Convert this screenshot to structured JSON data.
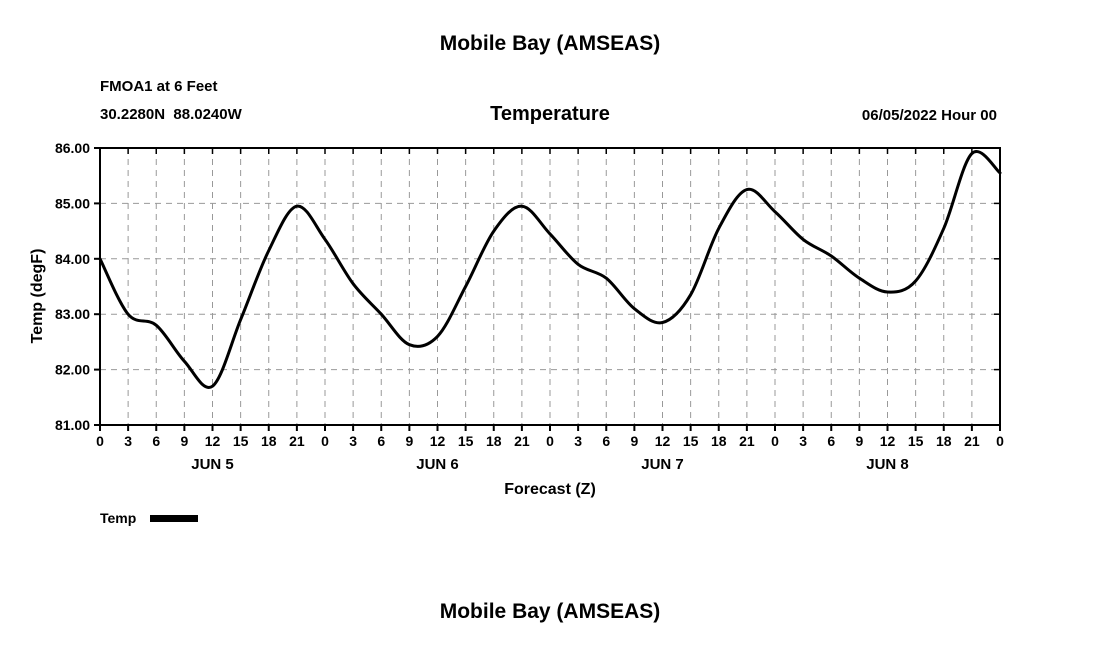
{
  "header": {
    "main_title": "Mobile Bay (AMSEAS)",
    "station": "FMOA1 at 6 Feet",
    "coordinates": "30.2280N  88.0240W",
    "plot_title": "Temperature",
    "datetime": "06/05/2022 Hour 00"
  },
  "legend": {
    "label": "Temp"
  },
  "footer": {
    "bottom_title": "Mobile Bay (AMSEAS)"
  },
  "colors": {
    "line": "#000000",
    "grid": "#999999",
    "axis": "#000000",
    "text": "#000000",
    "background": "#ffffff"
  },
  "chart_data": {
    "type": "line",
    "title": "Temperature",
    "xlabel": "Forecast (Z)",
    "ylabel": "Temp (degF)",
    "ylim": [
      81,
      86
    ],
    "xlim": [
      0,
      96
    ],
    "grid": true,
    "legend_position": "bottom-left",
    "y_tick_values": [
      81,
      82,
      83,
      84,
      85,
      86
    ],
    "y_tick_labels": [
      "81.00",
      "82.00",
      "83.00",
      "84.00",
      "85.00",
      "86.00"
    ],
    "x_tick_step_hours": 3,
    "x_tick_labels": [
      "0",
      "3",
      "6",
      "9",
      "12",
      "15",
      "18",
      "21",
      "0",
      "3",
      "6",
      "9",
      "12",
      "15",
      "18",
      "21",
      "0",
      "3",
      "6",
      "9",
      "12",
      "15",
      "18",
      "21",
      "0",
      "3",
      "6",
      "9",
      "12",
      "15",
      "18",
      "21",
      "0"
    ],
    "day_labels": [
      {
        "label": "JUN 5",
        "center_hour": 12
      },
      {
        "label": "JUN 6",
        "center_hour": 36
      },
      {
        "label": "JUN 7",
        "center_hour": 60
      },
      {
        "label": "JUN 8",
        "center_hour": 84
      }
    ],
    "series": [
      {
        "name": "Temp",
        "color": "#000000",
        "x": [
          0,
          3,
          6,
          9,
          12,
          15,
          18,
          21,
          24,
          27,
          30,
          33,
          36,
          39,
          42,
          45,
          48,
          51,
          54,
          57,
          60,
          63,
          66,
          69,
          72,
          75,
          78,
          81,
          84,
          87,
          90,
          93,
          96
        ],
        "y": [
          84.0,
          83.0,
          82.8,
          82.15,
          81.7,
          82.9,
          84.15,
          84.95,
          84.35,
          83.55,
          83.0,
          82.45,
          82.6,
          83.5,
          84.5,
          84.95,
          84.45,
          83.9,
          83.65,
          83.1,
          82.85,
          83.35,
          84.55,
          85.25,
          84.85,
          84.35,
          84.05,
          83.65,
          83.4,
          83.6,
          84.55,
          85.9,
          85.55
        ]
      }
    ]
  }
}
